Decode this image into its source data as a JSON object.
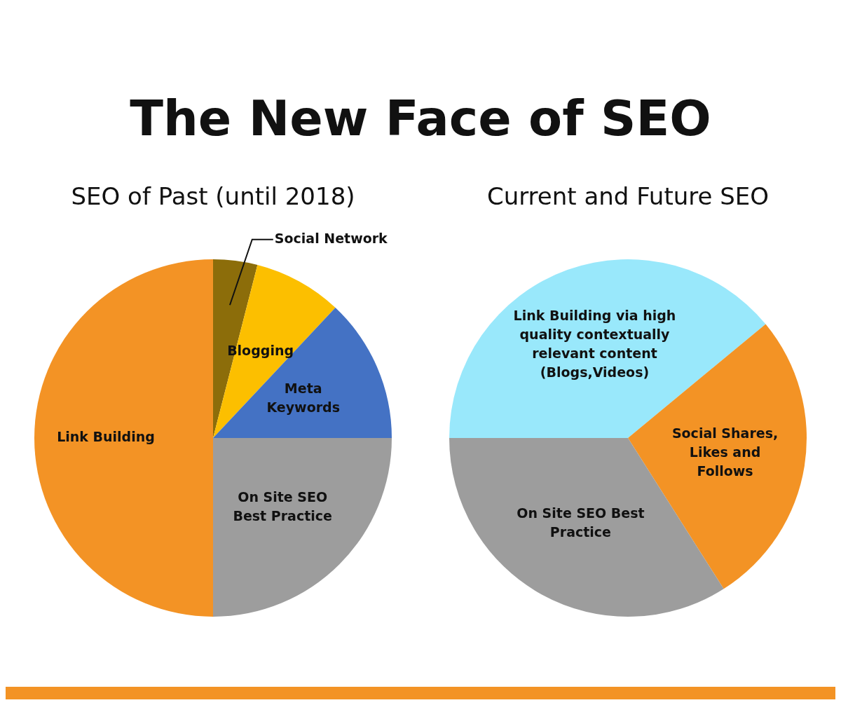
{
  "chart_data": [
    {
      "type": "pie",
      "title": "The New Face of SEO",
      "subtitle": "SEO of Past (until 2018)",
      "categories": [
        "Social Network",
        "Blogging",
        "Meta Keywords",
        "On Site SEO Best Practice",
        "Link Building"
      ],
      "values": [
        4,
        8,
        13,
        25,
        50
      ],
      "colors": [
        "#8c6d0a",
        "#fcbf00",
        "#4472c4",
        "#9d9d9d",
        "#f39325"
      ],
      "legend": false
    },
    {
      "type": "pie",
      "subtitle": "Current and Future SEO",
      "categories": [
        "Link Building via high quality contextually relevant content (Blogs,Videos)",
        "Social Shares, Likes and Follows",
        "On Site SEO Best Practice"
      ],
      "values": [
        39,
        27,
        34
      ],
      "colors": [
        "#99e8fb",
        "#f39325",
        "#9d9d9d"
      ],
      "legend": false
    }
  ]
}
